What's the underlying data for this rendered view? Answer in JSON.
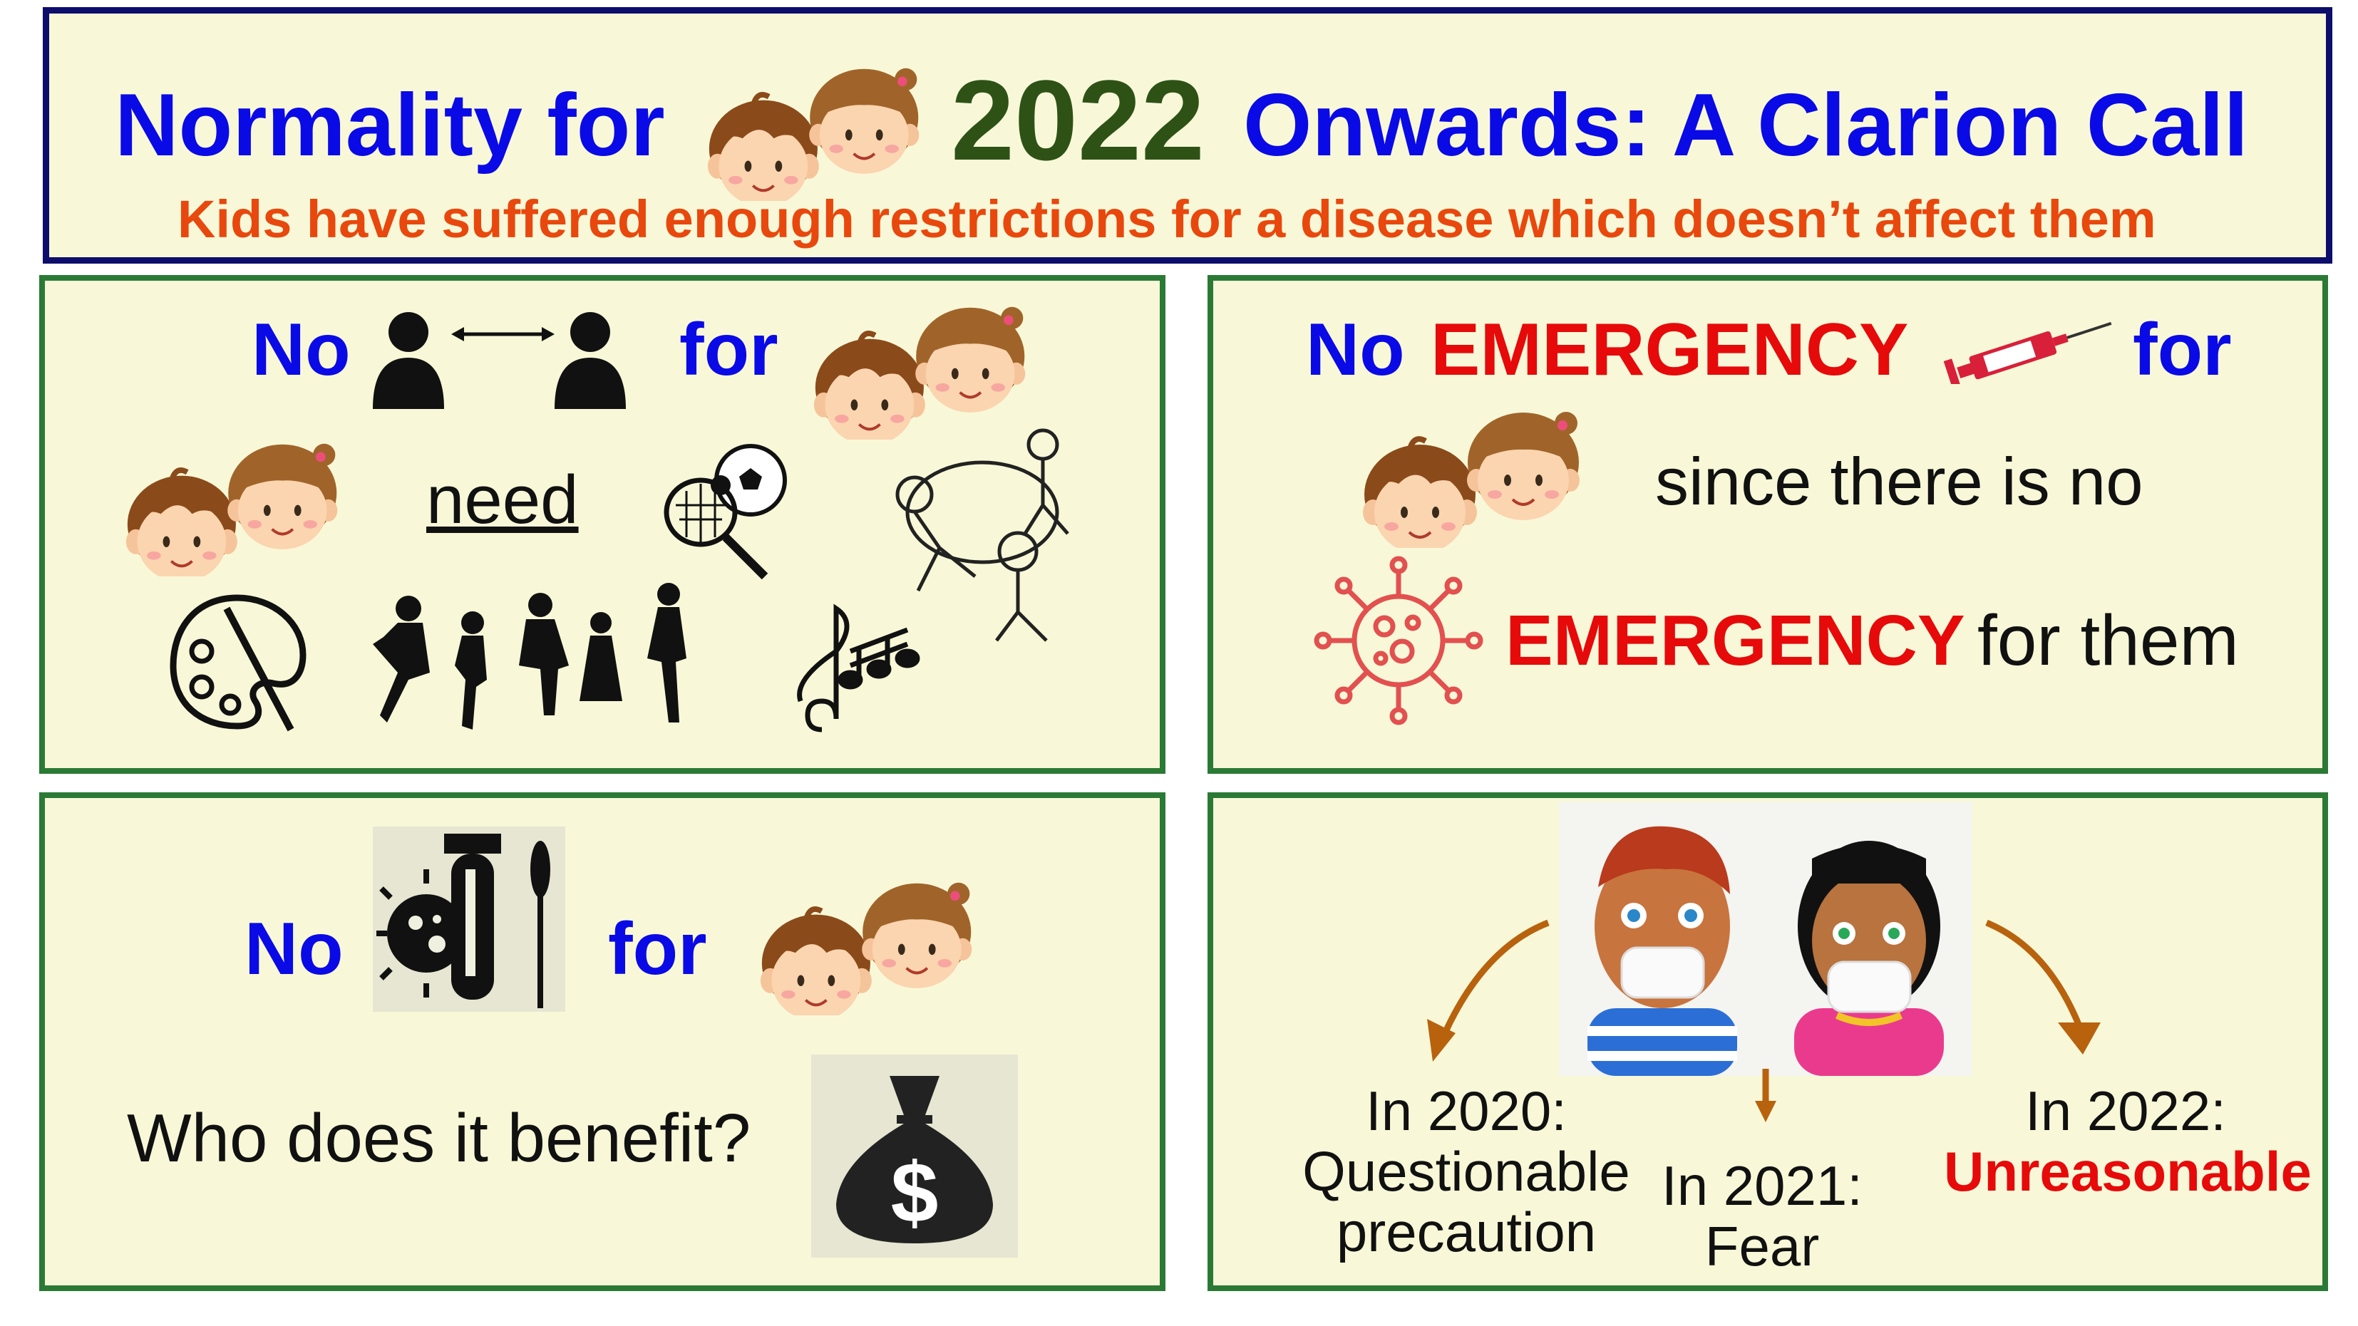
{
  "header": {
    "title_part1": "Normality for",
    "year": "2022",
    "title_part2": "Onwards: A Clarion Call",
    "subtitle": "Kids have suffered enough restrictions for a disease which doesn’t affect them"
  },
  "panel1": {
    "no": "No",
    "for": "for",
    "need": "need"
  },
  "panel2": {
    "no": "No",
    "emergency": "EMERGENCY",
    "for": "for",
    "since": "since there is no",
    "emergency2": "EMERGENCY",
    "for_them": "for them"
  },
  "panel3": {
    "no": "No",
    "for": "for",
    "question": "Who does it benefit?"
  },
  "panel4": {
    "y2020_label": "In 2020:",
    "y2020_value1": "Questionable",
    "y2020_value2": "precaution",
    "y2021_label": "In 2021:",
    "y2021_value": "Fear",
    "y2022_label": "In 2022:",
    "y2022_value": "Unreasonable"
  },
  "colors": {
    "title_blue": "#0a0ae6",
    "year_green": "#2e5216",
    "subtitle_orange": "#e8480d",
    "emergency_red": "#e60a0a",
    "panel_bg": "#f8f8d8",
    "panel_border": "#2a7a35",
    "header_border": "#0d0d6b"
  },
  "icons": [
    "boy-face-icon",
    "girl-face-icon",
    "social-distancing-icon",
    "sports-balls-icon",
    "playing-kids-icon",
    "paint-palette-icon",
    "dancing-kids-icon",
    "music-notes-icon",
    "syringe-icon",
    "virus-icon",
    "test-tube-swab-icon",
    "money-bag-icon",
    "masked-children-image",
    "curved-arrow-icon"
  ]
}
